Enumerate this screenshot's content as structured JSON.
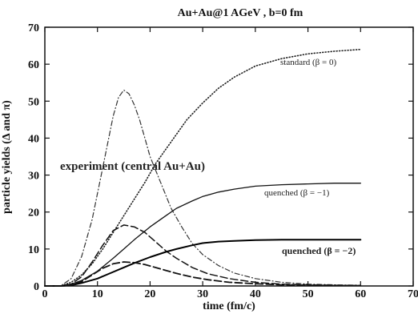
{
  "chart_data": {
    "type": "line",
    "title": "Au+Au@1 AGeV , b=0 fm",
    "xlabel": "time (fm/c)",
    "ylabel": "particle yields (Δ and π)",
    "xlim": [
      0,
      70
    ],
    "ylim": [
      0,
      70
    ],
    "xticks": [
      "0",
      "10",
      "20",
      "30",
      "40",
      "50",
      "60",
      "70"
    ],
    "yticks": [
      "0",
      "10",
      "20",
      "30",
      "40",
      "50",
      "60",
      "70"
    ],
    "grid": false,
    "annotations": {
      "standard": "standard (β = 0)",
      "quenched1": "quenched (β = −1)",
      "quenched2": "quenched (β = −2)",
      "experiment": "experiment (central Au+Au)"
    },
    "series": [
      {
        "style": "pi-standard",
        "x": [
          0,
          3,
          5,
          7,
          9,
          11,
          13,
          15,
          17,
          19,
          21,
          23,
          25,
          27,
          30,
          33,
          36,
          40,
          45,
          50,
          55,
          60
        ],
        "y": [
          0,
          0,
          1,
          3,
          6,
          10,
          14.5,
          19,
          23.5,
          28,
          33,
          37,
          41,
          45,
          49.5,
          53.5,
          56.5,
          59.5,
          61.5,
          62.8,
          63.5,
          64
        ]
      },
      {
        "style": "delta-standard",
        "x": [
          0,
          3,
          5,
          7,
          9,
          11,
          13,
          14,
          15,
          16,
          17,
          18,
          19,
          20,
          22,
          24,
          26,
          28,
          30,
          33,
          36,
          40,
          45,
          50,
          55,
          60
        ],
        "y": [
          0,
          0,
          2,
          8,
          18,
          32,
          46,
          51,
          53,
          52,
          49,
          45,
          40,
          35,
          28,
          21,
          16,
          11.5,
          8.5,
          5.5,
          3.5,
          2,
          1,
          0.5,
          0.3,
          0.2
        ]
      },
      {
        "style": "pi-quenched1",
        "x": [
          0,
          3,
          5,
          7,
          10,
          13,
          15,
          17,
          20,
          23,
          25,
          28,
          30,
          33,
          36,
          40,
          45,
          50,
          55,
          60
        ],
        "y": [
          0,
          0,
          0.5,
          1.5,
          4,
          7.5,
          10,
          12.5,
          16,
          19,
          21,
          23,
          24.2,
          25.4,
          26.2,
          27,
          27.4,
          27.6,
          27.8,
          27.8
        ]
      },
      {
        "style": "delta-quenched1",
        "x": [
          0,
          3,
          5,
          7,
          9,
          11,
          13,
          15,
          17,
          19,
          21,
          23,
          25,
          28,
          31,
          35,
          40,
          45,
          50,
          55,
          60
        ],
        "y": [
          0,
          0,
          0.5,
          2.5,
          6.5,
          11,
          15,
          16.5,
          16,
          14.5,
          12,
          9.5,
          7.5,
          5,
          3.3,
          2,
          1,
          0.5,
          0.3,
          0.2,
          0.1
        ]
      },
      {
        "style": "pi-quenched2",
        "x": [
          0,
          3,
          5,
          7,
          10,
          13,
          15,
          17,
          20,
          23,
          25,
          28,
          30,
          33,
          36,
          40,
          45,
          50,
          55,
          60
        ],
        "y": [
          0,
          0,
          0.2,
          0.8,
          2,
          3.8,
          5,
          6.2,
          7.8,
          9.2,
          10,
          11,
          11.6,
          12,
          12.2,
          12.4,
          12.5,
          12.5,
          12.5,
          12.5
        ]
      },
      {
        "style": "delta-quenched2",
        "x": [
          0,
          3,
          5,
          7,
          9,
          11,
          13,
          15,
          17,
          19,
          21,
          23,
          25,
          28,
          31,
          35,
          40,
          45,
          50,
          55,
          60
        ],
        "y": [
          0,
          0,
          0.3,
          1.2,
          3,
          4.8,
          6,
          6.5,
          6.3,
          5.8,
          5,
          4.2,
          3.4,
          2.4,
          1.7,
          1,
          0.6,
          0.3,
          0.2,
          0.1,
          0.1
        ]
      }
    ],
    "styles": {
      "pi-standard": {
        "color": "#222222",
        "dash": "1 2.5",
        "width": 1.6
      },
      "delta-standard": {
        "color": "#333333",
        "dash": "6 3 1 3",
        "width": 1.2
      },
      "pi-quenched1": {
        "color": "#111111",
        "dash": "",
        "width": 1.3
      },
      "delta-quenched1": {
        "color": "#111111",
        "dash": "9 4",
        "width": 1.5
      },
      "pi-quenched2": {
        "color": "#000000",
        "dash": "",
        "width": 2.0
      },
      "delta-quenched2": {
        "color": "#111111",
        "dash": "9 4",
        "width": 1.8
      }
    }
  }
}
